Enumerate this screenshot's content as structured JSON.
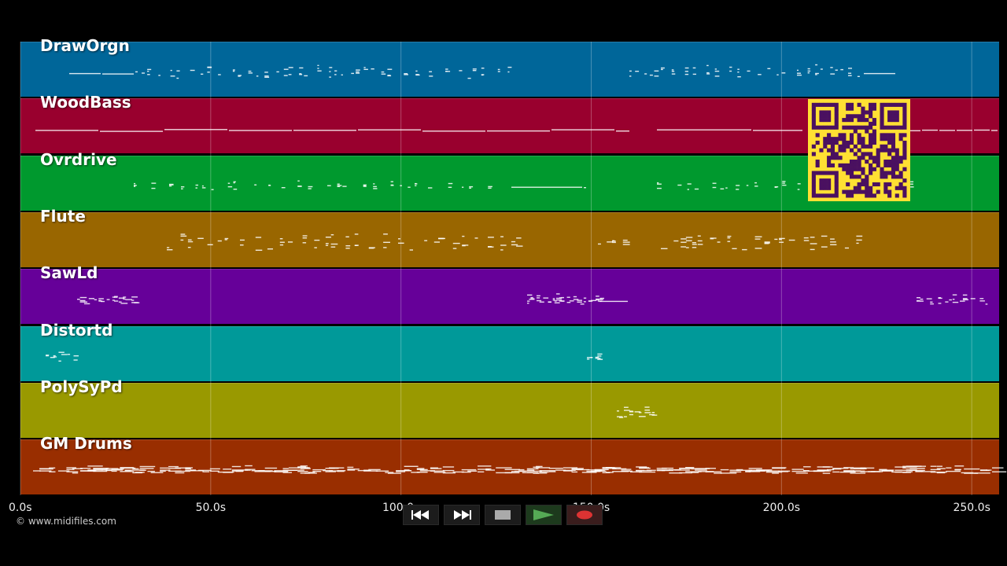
{
  "tracks": [
    {
      "name": "DrawOrgn",
      "color": "#006699"
    },
    {
      "name": "WoodBass",
      "color": "#99002e"
    },
    {
      "name": "Ovrdrive",
      "color": "#00992e"
    },
    {
      "name": "Flute",
      "color": "#996600"
    },
    {
      "name": "SawLd",
      "color": "#660099"
    },
    {
      "name": "Distortd",
      "color": "#009999"
    },
    {
      "name": "PolySyPd",
      "color": "#999900"
    },
    {
      "name": "GM Drums",
      "color": "#992e00"
    }
  ],
  "timeline": {
    "ticks": [
      "0.0s",
      "50.0s",
      "100.0s",
      "150.0s",
      "200.0s",
      "250.0s"
    ],
    "tick_values": [
      0,
      50,
      100,
      150,
      200,
      250
    ],
    "max_seconds": 257.2
  },
  "copyright": "© www.midifiles.com",
  "transport": {
    "rewind_icon": "rewind-icon",
    "forward_icon": "fast-forward-icon",
    "stop_icon": "stop-icon",
    "play_icon": "play-icon",
    "record_icon": "record-icon",
    "play_color": "#55aa55",
    "record_color": "#dd3333"
  },
  "qr_code": {
    "color_bg": "#ffe033",
    "color_fg": "#4a1060"
  }
}
